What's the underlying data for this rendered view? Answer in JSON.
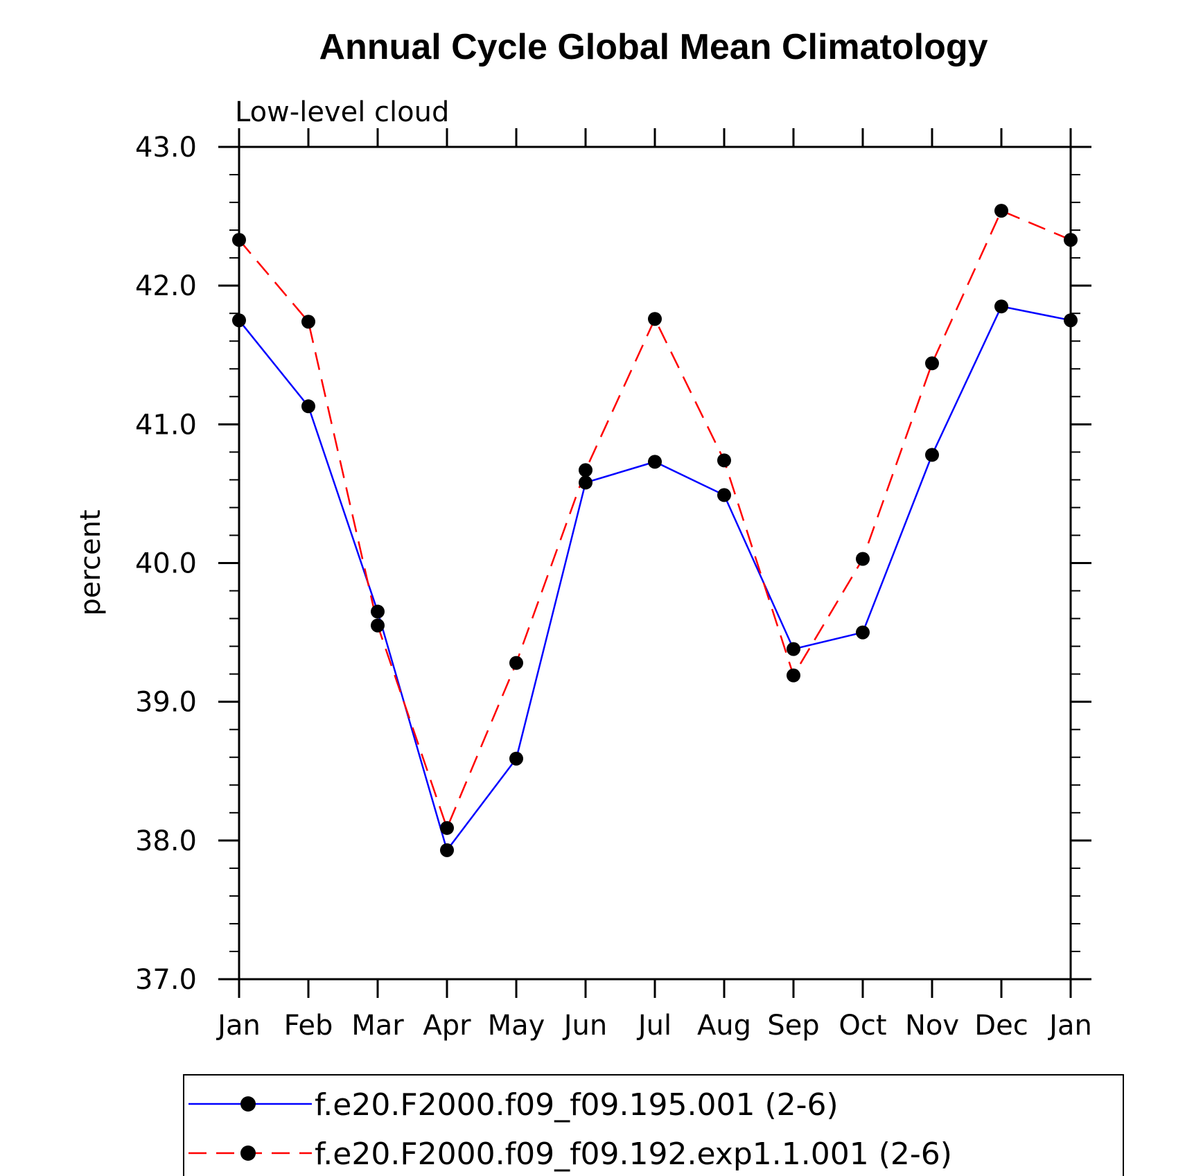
{
  "chart_data": {
    "type": "line",
    "title": "Annual Cycle Global Mean Climatology",
    "subtitle": "Low-level cloud",
    "ylabel": "percent",
    "xlabel": "",
    "categories": [
      "Jan",
      "Feb",
      "Mar",
      "Apr",
      "May",
      "Jun",
      "Jul",
      "Aug",
      "Sep",
      "Oct",
      "Nov",
      "Dec",
      "Jan"
    ],
    "ylim": [
      37.0,
      43.0
    ],
    "yticks": [
      "37.0",
      "38.0",
      "39.0",
      "40.0",
      "41.0",
      "42.0",
      "43.0"
    ],
    "grid": false,
    "legend_position": "bottom",
    "series": [
      {
        "name": "f.e20.F2000.f09_f09.195.001 (2-6)",
        "color": "#0000ff",
        "dash": "solid",
        "values": [
          41.75,
          41.13,
          39.65,
          37.93,
          38.59,
          40.58,
          40.73,
          40.49,
          39.38,
          39.5,
          40.78,
          41.85,
          41.75
        ]
      },
      {
        "name": "f.e20.F2000.f09_f09.192.exp1.1.001 (2-6)",
        "color": "#ff0000",
        "dash": "dashed",
        "values": [
          42.33,
          41.74,
          39.55,
          38.09,
          39.28,
          40.67,
          41.76,
          40.74,
          39.19,
          40.03,
          41.44,
          42.54,
          42.33
        ]
      }
    ]
  }
}
